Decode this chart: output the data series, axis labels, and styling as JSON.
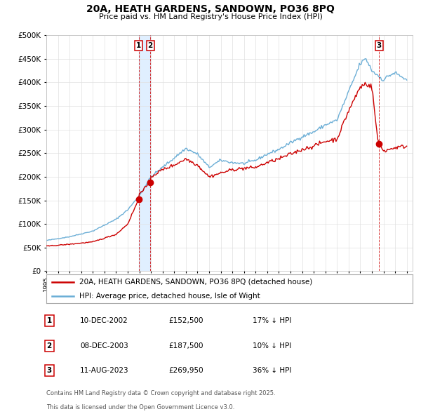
{
  "title": "20A, HEATH GARDENS, SANDOWN, PO36 8PQ",
  "subtitle": "Price paid vs. HM Land Registry's House Price Index (HPI)",
  "legend_line1": "20A, HEATH GARDENS, SANDOWN, PO36 8PQ (detached house)",
  "legend_line2": "HPI: Average price, detached house, Isle of Wight",
  "footer1": "Contains HM Land Registry data © Crown copyright and database right 2025.",
  "footer2": "This data is licensed under the Open Government Licence v3.0.",
  "transactions": [
    {
      "label": "1",
      "date": "10-DEC-2002",
      "price": 152500,
      "pct": "17%",
      "x": 2002.94
    },
    {
      "label": "2",
      "date": "08-DEC-2003",
      "price": 187500,
      "pct": "10%",
      "x": 2003.94
    },
    {
      "label": "3",
      "date": "11-AUG-2023",
      "price": 269950,
      "pct": "36%",
      "x": 2023.61
    }
  ],
  "table_rows": [
    {
      "num": "1",
      "date": "10-DEC-2002",
      "price": "£152,500",
      "pct": "17% ↓ HPI"
    },
    {
      "num": "2",
      "date": "08-DEC-2003",
      "price": "£187,500",
      "pct": "10% ↓ HPI"
    },
    {
      "num": "3",
      "date": "11-AUG-2023",
      "price": "£269,950",
      "pct": "36% ↓ HPI"
    }
  ],
  "hpi_color": "#6baed6",
  "price_color": "#cc0000",
  "vline_color": "#cc0000",
  "shade_color": "#ddeeff",
  "background_color": "#ffffff",
  "ylim": [
    0,
    500000
  ],
  "yticks": [
    0,
    50000,
    100000,
    150000,
    200000,
    250000,
    300000,
    350000,
    400000,
    450000,
    500000
  ],
  "xmin": 1995.0,
  "xmax": 2026.5,
  "hpi_anchors": {
    "1995": 65000,
    "1997": 73000,
    "1999": 85000,
    "2001": 110000,
    "2002": 130000,
    "2003": 160000,
    "2004": 200000,
    "2005": 220000,
    "2006": 240000,
    "2007": 260000,
    "2008": 248000,
    "2009": 220000,
    "2010": 235000,
    "2011": 230000,
    "2012": 228000,
    "2013": 235000,
    "2014": 248000,
    "2015": 258000,
    "2016": 272000,
    "2017": 285000,
    "2018": 295000,
    "2019": 310000,
    "2020": 320000,
    "2021": 380000,
    "2022": 440000,
    "2022.5": 450000,
    "2023": 425000,
    "2023.5": 415000,
    "2024": 405000,
    "2024.5": 415000,
    "2025": 420000,
    "2026": 405000
  },
  "price_anchors": {
    "1995": 53000,
    "1997": 57000,
    "1999": 62000,
    "2001": 78000,
    "2002": 100000,
    "2002.94": 152500,
    "2003": 165000,
    "2003.94": 187500,
    "2004": 200000,
    "2005": 215000,
    "2006": 225000,
    "2007": 238000,
    "2008": 225000,
    "2009": 200000,
    "2010": 208000,
    "2011": 215000,
    "2012": 218000,
    "2013": 220000,
    "2014": 230000,
    "2015": 238000,
    "2016": 248000,
    "2017": 258000,
    "2018": 265000,
    "2019": 275000,
    "2020": 280000,
    "2021": 340000,
    "2022": 390000,
    "2022.5": 398000,
    "2023": 390000,
    "2023.5": 280000,
    "2023.61": 269950,
    "2024": 255000,
    "2024.5": 258000,
    "2025": 262000,
    "2026": 265000
  }
}
